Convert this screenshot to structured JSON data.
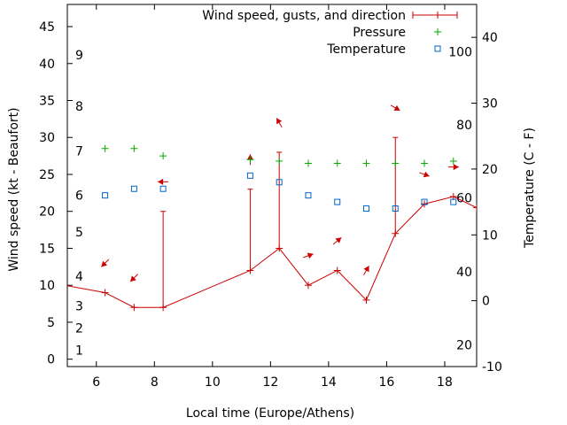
{
  "chart_data": {
    "type": "line",
    "xlabel": "Local time (Europe/Athens)",
    "ylabel": "Wind speed (kt - Beaufort)",
    "y2label": "Temperature (C - F)",
    "xlim": [
      5,
      19.1
    ],
    "ylim": [
      -1,
      48
    ],
    "y2lim": [
      -10,
      45
    ],
    "x_ticks": [
      6,
      8,
      10,
      12,
      14,
      16,
      18
    ],
    "y_ticks": [
      0,
      5,
      10,
      15,
      20,
      25,
      30,
      35,
      40,
      45
    ],
    "y2_ticks": [
      -10,
      0,
      10,
      20,
      30,
      40
    ],
    "beaufort_labels": [
      {
        "label": "1",
        "y": 1.2
      },
      {
        "label": "2",
        "y": 4.2
      },
      {
        "label": "3",
        "y": 7.2
      },
      {
        "label": "4",
        "y": 11.2
      },
      {
        "label": "5",
        "y": 17.2
      },
      {
        "label": "6",
        "y": 22.2
      },
      {
        "label": "7",
        "y": 28.2
      },
      {
        "label": "8",
        "y": 34.2
      },
      {
        "label": "9",
        "y": 41.2
      }
    ],
    "fahrenheit_labels": [
      {
        "label": "20",
        "y2": -6.7
      },
      {
        "label": "40",
        "y2": 4.4
      },
      {
        "label": "60",
        "y2": 15.6
      },
      {
        "label": "80",
        "y2": 26.7
      },
      {
        "label": "100",
        "y2": 37.8
      }
    ],
    "legend": [
      {
        "label": "Wind speed, gusts, and direction",
        "color": "#cc0000",
        "marker": "line-plus"
      },
      {
        "label": "Pressure",
        "color": "#00aa00",
        "marker": "plus"
      },
      {
        "label": "Temperature",
        "color": "#0066cc",
        "marker": "square"
      }
    ],
    "series": [
      {
        "name": "Wind speed, gusts, and direction",
        "color": "#cc0000",
        "x": [
          4.9,
          6.3,
          7.3,
          8.3,
          11.3,
          12.3,
          13.3,
          14.3,
          15.3,
          16.3,
          17.3,
          18.3,
          19.1
        ],
        "values": [
          10,
          9,
          7,
          7,
          12,
          15,
          10,
          12,
          8,
          17,
          21,
          22,
          20.5
        ],
        "gusts": [
          null,
          null,
          null,
          20,
          23,
          28,
          null,
          null,
          null,
          30,
          null,
          null,
          null
        ],
        "direction_arrows": [
          {
            "x": 6.3,
            "y": 13,
            "dir": 45
          },
          {
            "x": 7.3,
            "y": 11,
            "dir": 45
          },
          {
            "x": 8.3,
            "y": 24,
            "dir": 90
          },
          {
            "x": 11.3,
            "y": 27,
            "dir": 180
          },
          {
            "x": 12.3,
            "y": 32,
            "dir": 150
          },
          {
            "x": 13.3,
            "y": 14,
            "dir": 250
          },
          {
            "x": 14.3,
            "y": 16,
            "dir": 230
          },
          {
            "x": 15.3,
            "y": 12,
            "dir": 210
          },
          {
            "x": 16.3,
            "y": 34,
            "dir": 300
          },
          {
            "x": 17.3,
            "y": 25,
            "dir": 290
          },
          {
            "x": 18.3,
            "y": 26,
            "dir": 270
          }
        ]
      },
      {
        "name": "Pressure",
        "color": "#00aa00",
        "x": [
          6.3,
          7.3,
          8.3,
          11.3,
          12.3,
          13.3,
          14.3,
          15.3,
          16.3,
          17.3,
          18.3
        ],
        "values": [
          28.5,
          28.5,
          27.5,
          27,
          26.8,
          26.5,
          26.5,
          26.5,
          26.5,
          26.5,
          26.8
        ]
      },
      {
        "name": "Temperature",
        "color": "#0066cc",
        "axis": "y2",
        "x": [
          6.3,
          7.3,
          8.3,
          11.3,
          12.3,
          13.3,
          14.3,
          15.3,
          16.3,
          17.3,
          18.3
        ],
        "values": [
          16,
          17,
          17,
          19,
          18,
          16,
          15,
          14,
          14,
          15,
          15
        ]
      }
    ]
  }
}
